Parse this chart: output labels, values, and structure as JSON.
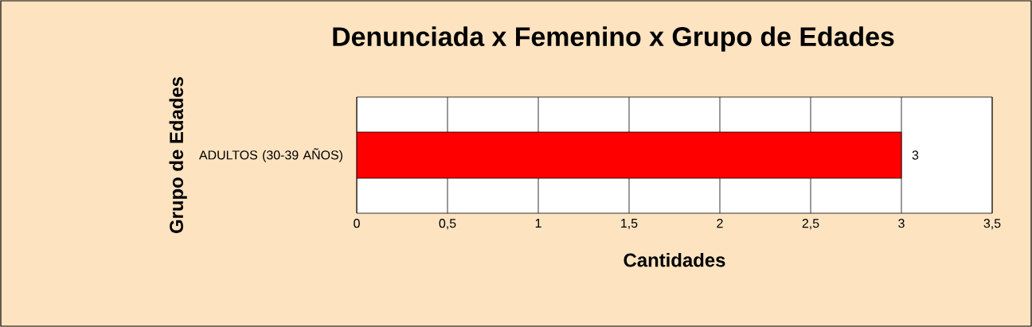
{
  "chart_data": {
    "type": "bar",
    "orientation": "horizontal",
    "title": "Denunciada x Femenino x Grupo de Edades",
    "xlabel": "Cantidades",
    "ylabel": "Grupo de Edades",
    "categories": [
      "ADULTOS (30-39 AÑOS)"
    ],
    "values": [
      3
    ],
    "value_labels": [
      "3"
    ],
    "color": "#ff0000",
    "xlim": [
      0,
      3.5
    ],
    "xticks": [
      0,
      {
        "value": 0.5,
        "label": "0,5"
      },
      1,
      {
        "value": 1.5,
        "label": "1,5"
      },
      2,
      {
        "value": 2.5,
        "label": "2,5"
      },
      3,
      {
        "value": 3.5,
        "label": "3,5"
      }
    ],
    "grid": "x"
  }
}
